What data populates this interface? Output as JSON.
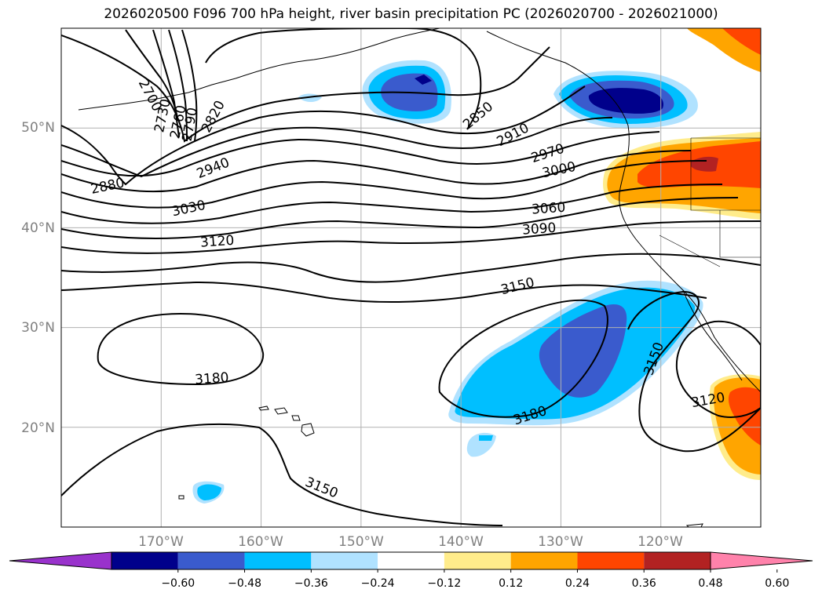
{
  "title": "2026020500 F096 700 hPa height, river basin precipitation PC (2026020700 - 2026021000)",
  "map": {
    "lon_range": [
      -180,
      -110
    ],
    "lat_range": [
      10,
      60
    ],
    "lat_ticks": [
      {
        "value": 50,
        "label": "50°N"
      },
      {
        "value": 40,
        "label": "40°N"
      },
      {
        "value": 30,
        "label": "30°N"
      },
      {
        "value": 20,
        "label": "20°N"
      }
    ],
    "lon_ticks": [
      {
        "value": -170,
        "label": "170°W"
      },
      {
        "value": -160,
        "label": "160°W"
      },
      {
        "value": -150,
        "label": "150°W"
      },
      {
        "value": -140,
        "label": "140°W"
      },
      {
        "value": -130,
        "label": "130°W"
      },
      {
        "value": -120,
        "label": "120°W"
      }
    ],
    "grid": true,
    "contour_labels": [
      "2700",
      "2730",
      "2760",
      "2790",
      "2820",
      "2850",
      "2880",
      "2910",
      "2940",
      "2970",
      "3000",
      "3030",
      "3060",
      "3090",
      "3120",
      "3150",
      "3180",
      "3150",
      "3120",
      "3180",
      "3150",
      "3120"
    ]
  },
  "colorbar": {
    "labels": [
      "−0.60",
      "−0.48",
      "−0.36",
      "−0.24",
      "−0.12",
      "0.12",
      "0.24",
      "0.36",
      "0.48",
      "0.60"
    ],
    "colors": [
      "#9932cc",
      "#00008b",
      "#3a5bcd",
      "#00bfff",
      "#b0e2ff",
      "#ffffff",
      "#ffec8b",
      "#ffa500",
      "#ff4500",
      "#b22222",
      "#ff82ab"
    ],
    "extend": "both"
  }
}
